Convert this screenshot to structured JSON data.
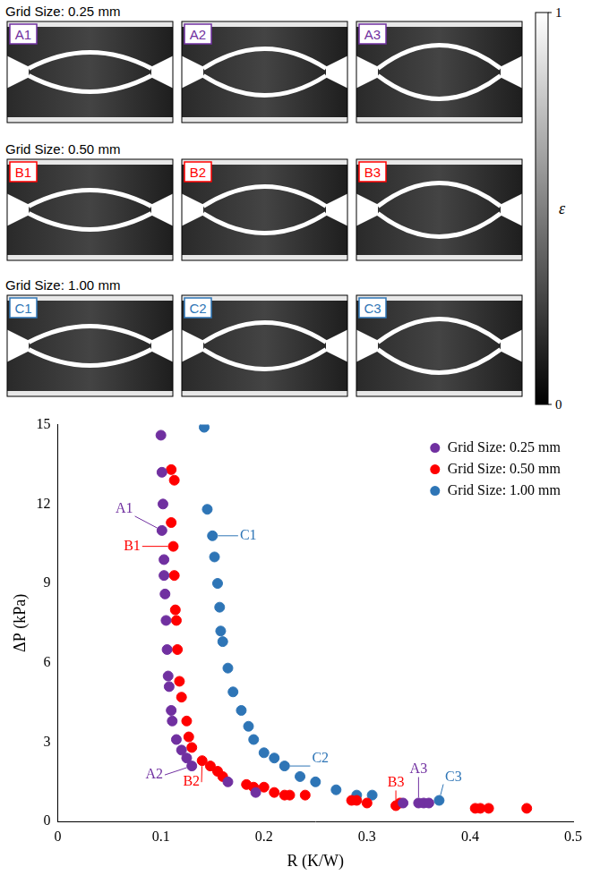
{
  "chart_data": {
    "type": "scatter",
    "x_label": "R (K/W)",
    "y_label": "ΔP (kPa)",
    "xlim": [
      0,
      0.5
    ],
    "xticks": [
      0,
      0.1,
      0.2,
      0.3,
      0.4,
      0.5
    ],
    "ylim": [
      0,
      15
    ],
    "yticks": [
      0,
      3,
      6,
      9,
      12,
      15
    ],
    "grid": false,
    "legend": "top-right",
    "series": [
      {
        "name": "Grid Size: 0.25 mm",
        "color": "#7030a0",
        "marker": "circle",
        "x": [
          0.1,
          0.101,
          0.102,
          0.101,
          0.103,
          0.103,
          0.104,
          0.105,
          0.106,
          0.107,
          0.108,
          0.11,
          0.111,
          0.115,
          0.12,
          0.125,
          0.13,
          0.165,
          0.192,
          0.335,
          0.35,
          0.355,
          0.36
        ],
        "values": [
          14.6,
          13.2,
          12.0,
          11.0,
          9.9,
          9.3,
          8.6,
          7.6,
          6.5,
          5.5,
          5.1,
          4.2,
          3.8,
          3.1,
          2.7,
          2.4,
          2.1,
          1.5,
          1.1,
          0.7,
          0.7,
          0.7,
          0.7
        ]
      },
      {
        "name": "Grid Size: 0.50 mm",
        "color": "#ff0000",
        "marker": "circle",
        "x": [
          0.11,
          0.113,
          0.11,
          0.112,
          0.113,
          0.114,
          0.115,
          0.116,
          0.118,
          0.12,
          0.125,
          0.127,
          0.13,
          0.14,
          0.148,
          0.155,
          0.16,
          0.183,
          0.19,
          0.2,
          0.21,
          0.22,
          0.225,
          0.24,
          0.285,
          0.29,
          0.3,
          0.328,
          0.332,
          0.405,
          0.41,
          0.418,
          0.455
        ],
        "values": [
          13.3,
          12.9,
          11.3,
          10.4,
          9.3,
          8.0,
          7.6,
          6.5,
          5.3,
          4.7,
          3.8,
          3.2,
          2.8,
          2.3,
          2.1,
          1.9,
          1.7,
          1.4,
          1.3,
          1.3,
          1.1,
          1.0,
          1.0,
          1.0,
          0.8,
          0.8,
          0.7,
          0.6,
          0.7,
          0.5,
          0.5,
          0.5,
          0.5
        ]
      },
      {
        "name": "Grid Size: 1.00 mm",
        "color": "#2e75b6",
        "marker": "circle",
        "x": [
          0.142,
          0.145,
          0.15,
          0.152,
          0.155,
          0.157,
          0.158,
          0.16,
          0.165,
          0.17,
          0.178,
          0.185,
          0.19,
          0.2,
          0.21,
          0.22,
          0.235,
          0.25,
          0.27,
          0.29,
          0.305,
          0.37
        ],
        "values": [
          14.9,
          11.8,
          10.8,
          10.0,
          9.0,
          8.1,
          7.2,
          6.8,
          5.8,
          4.9,
          4.2,
          3.6,
          3.1,
          2.6,
          2.4,
          2.1,
          1.7,
          1.5,
          1.2,
          1.0,
          1.0,
          0.8
        ]
      }
    ],
    "annotations": [
      {
        "text": "A1",
        "x": 0.101,
        "y": 11.0,
        "color": "#7030a0"
      },
      {
        "text": "B1",
        "x": 0.112,
        "y": 10.4,
        "color": "#ff0000"
      },
      {
        "text": "C1",
        "x": 0.15,
        "y": 10.8,
        "color": "#2e75b6"
      },
      {
        "text": "A2",
        "x": 0.13,
        "y": 2.1,
        "color": "#7030a0"
      },
      {
        "text": "B2",
        "x": 0.14,
        "y": 2.3,
        "color": "#ff0000"
      },
      {
        "text": "C2",
        "x": 0.22,
        "y": 2.1,
        "color": "#2e75b6"
      },
      {
        "text": "B3",
        "x": 0.328,
        "y": 0.6,
        "color": "#ff0000"
      },
      {
        "text": "A3",
        "x": 0.35,
        "y": 0.7,
        "color": "#7030a0"
      },
      {
        "text": "C3",
        "x": 0.37,
        "y": 0.8,
        "color": "#2e75b6"
      }
    ]
  },
  "maps": {
    "rows": [
      {
        "title": "Grid Size: 0.25 mm",
        "color": "#7030a0",
        "panels": [
          "A1",
          "A2",
          "A3"
        ]
      },
      {
        "title": "Grid Size: 0.50 mm",
        "color": "#ff0000",
        "panels": [
          "B1",
          "B2",
          "B3"
        ]
      },
      {
        "title": "Grid Size: 1.00 mm",
        "color": "#2e75b6",
        "panels": [
          "C1",
          "C2",
          "C3"
        ]
      }
    ],
    "colorbar": {
      "label": "ε",
      "range": [
        0,
        1
      ],
      "ticks": [
        0,
        1
      ]
    }
  }
}
